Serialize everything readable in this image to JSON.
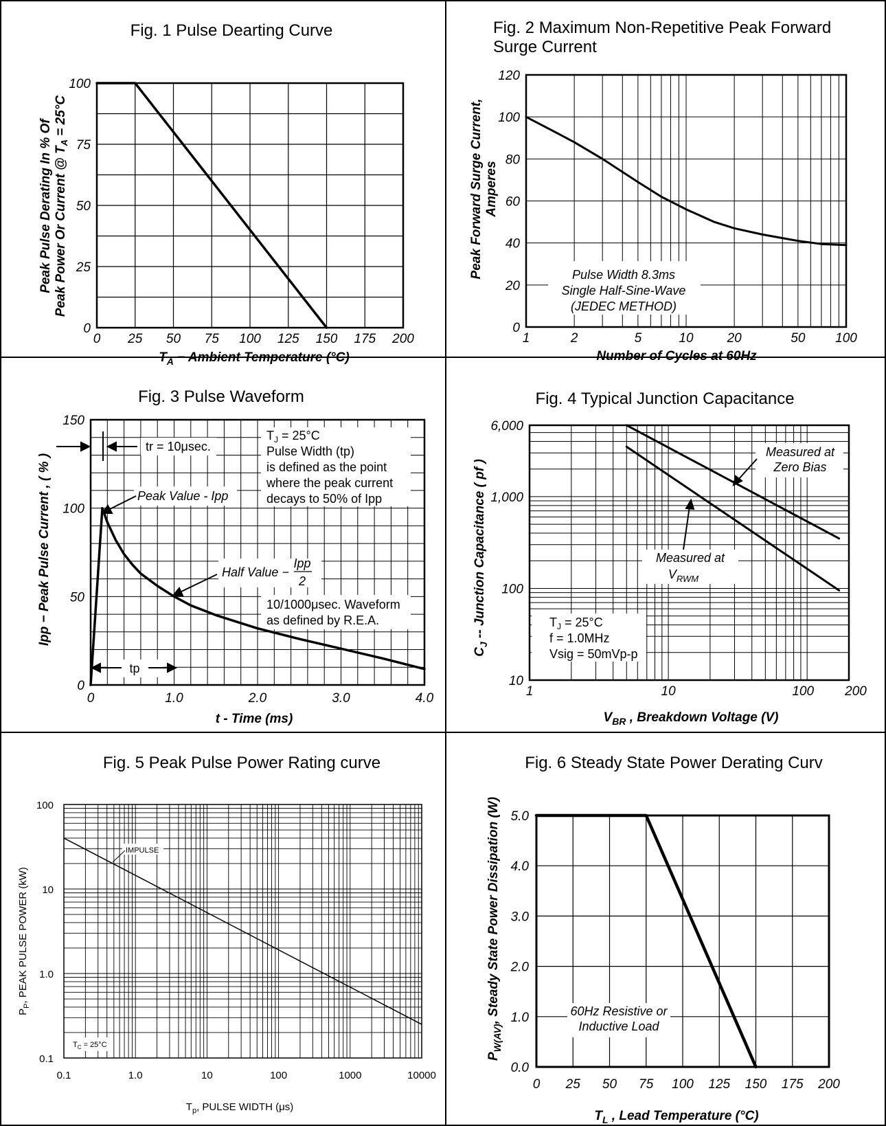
{
  "colors": {
    "line": "#000000",
    "grid": "#000000",
    "background": "#ffffff"
  },
  "figures": [
    {
      "title": "Fig. 1 Pulse Dearting Curve",
      "chart_data": {
        "type": "line",
        "xlabel": "T_A − Ambient Temperature (°C)",
        "ylabel": "Peak Pulse Derating In % Of Peak Power Or Current @ T_A = 25°C",
        "xlim": [
          0,
          200
        ],
        "ylim": [
          0,
          100
        ],
        "xticks": [
          0,
          25,
          50,
          75,
          100,
          125,
          150,
          175,
          200
        ],
        "yticks": [
          0,
          25,
          50,
          75,
          100
        ],
        "xtick_labels": [
          "0",
          "25",
          "50",
          "75",
          "100",
          "125",
          "150",
          "175",
          "200"
        ],
        "ytick_labels": [
          "0",
          "25",
          "50",
          "75",
          "100"
        ],
        "grid": true,
        "series": [
          {
            "x": [
              0,
              25,
              150
            ],
            "y": [
              100,
              100,
              0
            ]
          }
        ]
      }
    },
    {
      "title": "Fig. 2 Maximum Non-Repetitive Peak Forward Surge Current",
      "chart_data": {
        "type": "line",
        "xscale": "log",
        "xlabel": "Number of Cycles at 60Hz",
        "ylabel": "Peak Forward Surge Current, Amperes",
        "xlim": [
          1,
          100
        ],
        "ylim": [
          0,
          120
        ],
        "xtick_labels": [
          "1",
          "2",
          "5",
          "10",
          "20",
          "50",
          "100"
        ],
        "ytick_labels": [
          "0",
          "20",
          "40",
          "60",
          "80",
          "100",
          "120"
        ],
        "grid": true,
        "annotations": [
          "Pulse Width 8.3ms",
          "Single Half-Sine-Wave",
          "(JEDEC METHOD)"
        ],
        "series": [
          {
            "x": [
              1,
              1.5,
              2,
              3,
              5,
              7,
              10,
              15,
              20,
              30,
              50,
              70,
              100
            ],
            "y": [
              100,
              93,
              88,
              80,
              69,
              62,
              56,
              50,
              47,
              44,
              41,
              39.5,
              39
            ]
          }
        ]
      }
    },
    {
      "title": "Fig. 3 Pulse Waveform",
      "chart_data": {
        "type": "line",
        "xlabel": "t - Time (ms)",
        "ylabel": "Ipp − Peak Pulse Current , ( % )",
        "xlim": [
          0,
          4.0
        ],
        "ylim": [
          0,
          150
        ],
        "xtick_labels": [
          "0",
          "1.0",
          "2.0",
          "3.0",
          "4.0"
        ],
        "ytick_labels": [
          "0",
          "50",
          "100",
          "150"
        ],
        "grid": true,
        "annotations": {
          "tr": "tr = 10μsec.",
          "tj": "T",
          "tj_sub": "J",
          "tj_rest": " = 25°C",
          "pw1": "Pulse Width (tp)",
          "pw2": "is defined as the point",
          "pw3": "where the peak current",
          "pw4": "decays to 50% of Ipp",
          "peak": "Peak Value - Ipp",
          "half": "Half Value −",
          "half_num": "Ipp",
          "half_den": "2",
          "wave1": "10/1000μsec. Waveform",
          "wave2": "as defined by R.E.A.",
          "tp": "tp"
        },
        "series": [
          {
            "x": [
              0,
              0.14,
              0.2,
              0.3,
              0.4,
              0.5,
              0.6,
              0.8,
              1.0,
              1.2,
              1.5,
              2.0,
              2.5,
              3.0,
              3.5,
              4.0
            ],
            "y": [
              0,
              100,
              92,
              82,
              74,
              68,
              63,
              56,
              50,
              45,
              39.5,
              32,
              26,
              20.5,
              15,
              9
            ]
          }
        ]
      }
    },
    {
      "title": "Fig. 4 Typical Junction Capacitance",
      "chart_data": {
        "type": "line",
        "xscale": "log",
        "yscale": "log",
        "xlabel": "V_BR , Breakdown Voltage (V)",
        "ylabel": "C_J -- Junction Capacitance ( pf )",
        "xlim": [
          1,
          200
        ],
        "ylim": [
          10,
          6000
        ],
        "xtick_labels": [
          "1",
          "10",
          "100",
          "200"
        ],
        "ytick_labels": [
          "10",
          "100",
          "1,000",
          "6,000"
        ],
        "grid": true,
        "annotations": {
          "zero1": "Measured at",
          "zero2": "Zero Bias",
          "rwm1": "Measured at",
          "rwm2": "V",
          "rwm_sub": "RWM",
          "cond1": "T",
          "cond1_sub": "J",
          "cond1_rest": " = 25°C",
          "cond2": "f = 1.0MHz",
          "cond3": "Vsig = 50mVp-p"
        },
        "series": [
          {
            "x": [
              5,
              170
            ],
            "y": [
              6000,
              350
            ]
          },
          {
            "x": [
              5,
              170
            ],
            "y": [
              3500,
              95
            ]
          }
        ]
      }
    },
    {
      "title": "Fig. 5 Peak Pulse Power Rating curve",
      "chart_data": {
        "type": "line",
        "xscale": "log",
        "yscale": "log",
        "xlabel": "T_p, PULSE WIDTH (μs)",
        "ylabel": "P_P, PEAK PULSE POWER (kW)",
        "xlim": [
          0.1,
          10000
        ],
        "ylim": [
          0.1,
          100
        ],
        "xtick_labels": [
          "0.1",
          "1.0",
          "10",
          "100",
          "1000",
          "10000"
        ],
        "ytick_labels": [
          "0.1",
          "1.0",
          "10",
          "100"
        ],
        "grid": true,
        "annotations": {
          "impulse": "IMPULSE",
          "tc": "T",
          "tc_sub": "C",
          "tc_rest": " = 25°C"
        },
        "series": [
          {
            "x": [
              0.1,
              10000
            ],
            "y": [
              40,
              0.25
            ]
          }
        ]
      }
    },
    {
      "title": "Fig. 6 Steady State Power Derating Curv",
      "chart_data": {
        "type": "line",
        "xlabel": "T_L , Lead Temperature (°C)",
        "ylabel": "P_W(AV), Steady State Power Dissipation (W)",
        "xlim": [
          0,
          200
        ],
        "ylim": [
          0,
          5.0
        ],
        "xtick_labels": [
          "0",
          "25",
          "50",
          "75",
          "100",
          "125",
          "150",
          "175",
          "200"
        ],
        "ytick_labels": [
          "0.0",
          "1.0",
          "2.0",
          "3.0",
          "4.0",
          "5.0"
        ],
        "grid": true,
        "annotations": [
          "60Hz Resistive or",
          "Inductive Load"
        ],
        "series": [
          {
            "x": [
              0,
              75,
              150
            ],
            "y": [
              5.0,
              5.0,
              0
            ]
          }
        ]
      }
    }
  ]
}
